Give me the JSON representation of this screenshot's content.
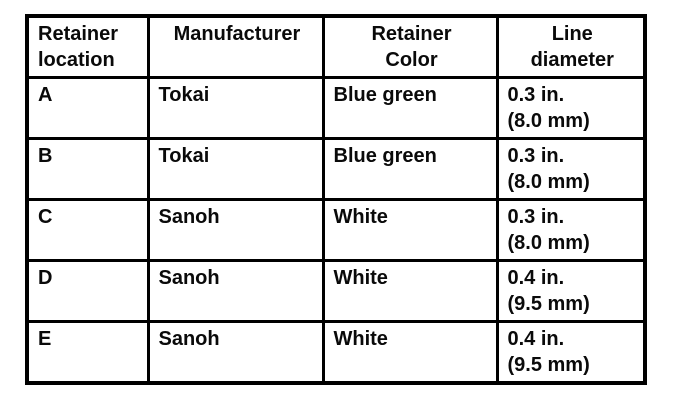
{
  "colors": {
    "ink": "#000000",
    "paper": "#ffffff"
  },
  "table": {
    "headers": [
      [
        "Retainer",
        "location"
      ],
      [
        "Manufacturer"
      ],
      [
        "Retainer",
        "Color"
      ],
      [
        "Line",
        "diameter"
      ]
    ],
    "rows": [
      {
        "location": "A",
        "manufacturer": "Tokai",
        "color": "Blue green",
        "diameter": [
          "0.3 in.",
          "(8.0 mm)"
        ]
      },
      {
        "location": "B",
        "manufacturer": "Tokai",
        "color": "Blue green",
        "diameter": [
          "0.3 in.",
          "(8.0 mm)"
        ]
      },
      {
        "location": "C",
        "manufacturer": "Sanoh",
        "color": "White",
        "diameter": [
          "0.3 in.",
          "(8.0 mm)"
        ]
      },
      {
        "location": "D",
        "manufacturer": "Sanoh",
        "color": "White",
        "diameter": [
          "0.4 in.",
          "(9.5 mm)"
        ]
      },
      {
        "location": "E",
        "manufacturer": "Sanoh",
        "color": "White",
        "diameter": [
          "0.4 in.",
          "(9.5 mm)"
        ]
      }
    ]
  }
}
